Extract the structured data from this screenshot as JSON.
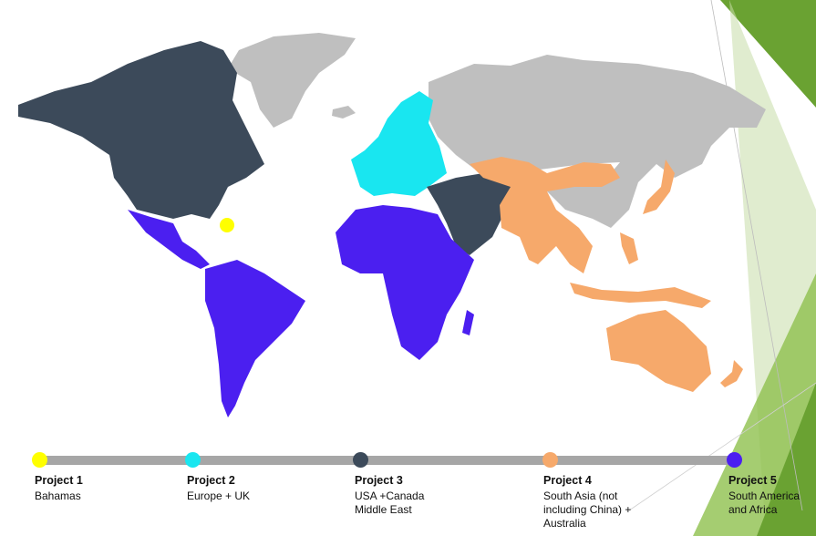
{
  "colors": {
    "background": "#ffffff",
    "land_other": "#bfbfbf",
    "project1": "#ffff00",
    "project2": "#19e6f0",
    "project3": "#3c4a5a",
    "project4": "#f6a96b",
    "project5": "#4b1ff0",
    "timeline": "#a6a6a6",
    "accent_green": "#6aa232"
  },
  "timeline": {
    "projects": [
      {
        "name": "Project 1",
        "desc": "Bahamas",
        "color": "#ffff00"
      },
      {
        "name": "Project 2",
        "desc": "Europe + UK",
        "color": "#19e6f0"
      },
      {
        "name": "Project 3",
        "desc": "USA +Canada\nMiddle East",
        "color": "#3c4a5a"
      },
      {
        "name": "Project 4",
        "desc": "South Asia (not\nincluding China) +\nAustralia",
        "color": "#f6a96b"
      },
      {
        "name": "Project 5",
        "desc": "South America\nand Africa",
        "color": "#4b1ff0"
      }
    ]
  }
}
